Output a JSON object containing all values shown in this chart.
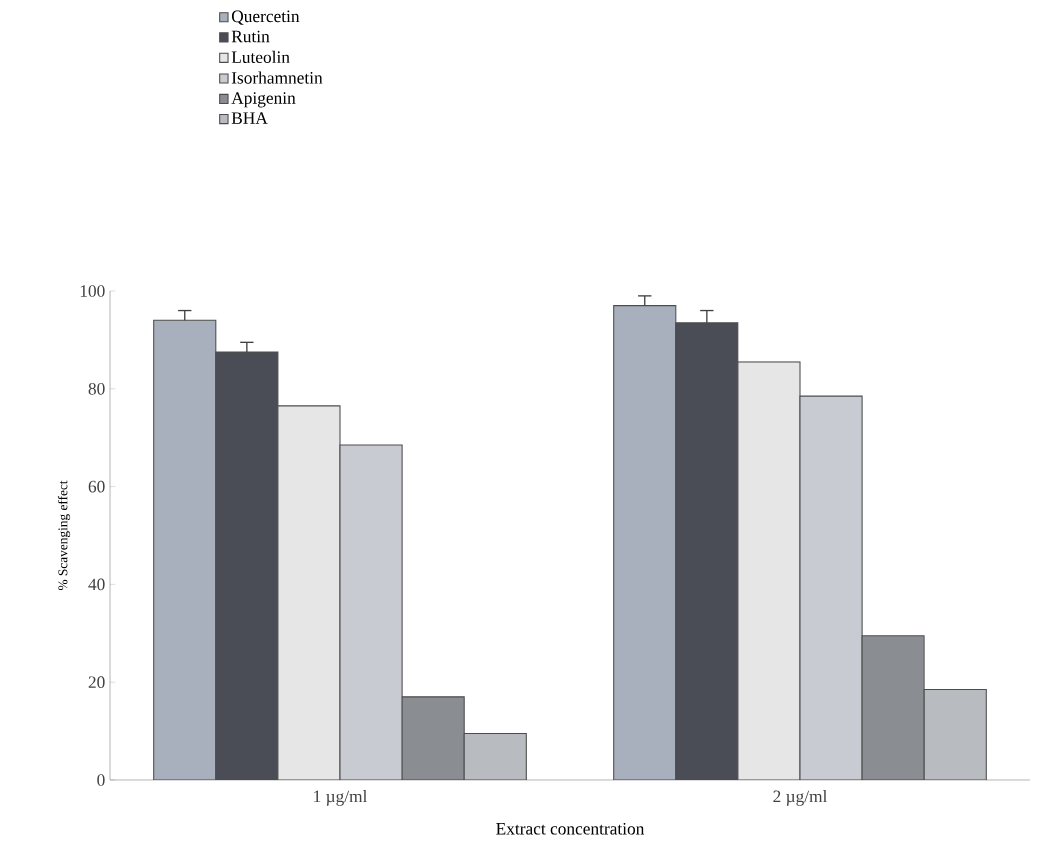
{
  "chart_data": {
    "type": "bar",
    "xlabel": "Extract concentration",
    "ylabel": "% Scavenging effect",
    "categories": [
      "1 µg/ml",
      "2 µg/ml"
    ],
    "series": [
      {
        "name": "Quercetin",
        "color": "#a9b0bd",
        "values": [
          94,
          97
        ],
        "errors": [
          2,
          2
        ]
      },
      {
        "name": "Rutin",
        "color": "#4a4d55",
        "values": [
          87.5,
          93.5
        ],
        "errors": [
          2,
          2.5
        ]
      },
      {
        "name": "Luteolin",
        "color": "#e6e6e6",
        "values": [
          76.5,
          85.5
        ]
      },
      {
        "name": "Isorhamnetin",
        "color": "#c8ccd2",
        "values": [
          68.5,
          78.5
        ]
      },
      {
        "name": "Apigenin",
        "color": "#8a8d92",
        "values": [
          17,
          29.5
        ]
      },
      {
        "name": "BHA",
        "color": "#b8bcc0",
        "values": [
          9.5,
          18.5
        ]
      }
    ],
    "ylim": [
      0,
      100
    ],
    "yticks": [
      0,
      20,
      40,
      60,
      80,
      100
    ],
    "grid": false,
    "legend": "top left"
  }
}
